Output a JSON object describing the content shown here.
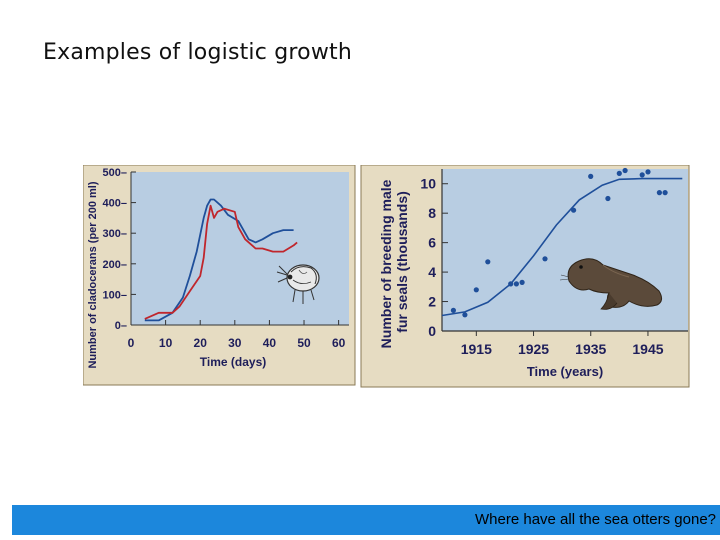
{
  "slide": {
    "title": "Examples of logistic growth",
    "footer_text": "Where have all the sea otters gone?"
  },
  "colors": {
    "panel_background": "#e6dcc2",
    "plot_background": "#b8cde2",
    "axis_text": "#1e1e5a",
    "series_blue": "#1f4f9a",
    "series_red": "#c0262c",
    "footer_bar": "#1c87dc"
  },
  "icons": [
    "cladoceran-illustration",
    "fur-seal-illustration"
  ],
  "chart_data": [
    {
      "type": "line",
      "title": "",
      "xlabel": "Time (days)",
      "ylabel": "Number of cladocerans (per 200 ml)",
      "xlim": [
        0,
        63
      ],
      "ylim": [
        0,
        500
      ],
      "xticks": [
        "0",
        "10",
        "20",
        "30",
        "40",
        "50",
        "60"
      ],
      "yticks": [
        "0",
        "100",
        "200",
        "300",
        "400",
        "500"
      ],
      "grid": false,
      "series": [
        {
          "color": "#1f4f9a",
          "x": [
            4,
            8,
            12,
            15,
            17,
            19,
            21,
            22,
            23,
            24,
            26,
            28,
            31,
            34,
            36,
            38,
            41,
            44,
            47
          ],
          "y": [
            15,
            15,
            40,
            90,
            160,
            240,
            350,
            390,
            410,
            410,
            390,
            360,
            340,
            280,
            270,
            280,
            300,
            310,
            310
          ]
        },
        {
          "color": "#c0262c",
          "x": [
            4,
            8,
            12,
            14,
            17,
            20,
            21,
            22,
            23,
            24,
            25,
            27,
            30,
            31,
            33,
            36,
            38,
            41,
            44,
            47,
            48
          ],
          "y": [
            20,
            40,
            40,
            60,
            110,
            160,
            220,
            330,
            390,
            350,
            370,
            380,
            370,
            320,
            280,
            250,
            250,
            240,
            240,
            260,
            270
          ]
        }
      ]
    },
    {
      "type": "scatter",
      "title": "",
      "xlabel": "Time (years)",
      "ylabel": "Number of breeding male fur seals (thousands)",
      "xlim": [
        1909,
        1952
      ],
      "ylim": [
        0,
        11
      ],
      "xticks": [
        "1915",
        "1925",
        "1935",
        "1945"
      ],
      "yticks": [
        "0",
        "2",
        "4",
        "6",
        "8",
        "10"
      ],
      "grid": false,
      "points": {
        "x": [
          1911,
          1913,
          1915,
          1917,
          1921,
          1922,
          1923,
          1927,
          1932,
          1935,
          1938,
          1940,
          1941,
          1944,
          1945,
          1947,
          1948
        ],
        "y": [
          1.4,
          1.1,
          2.8,
          4.7,
          3.2,
          3.2,
          3.3,
          4.9,
          8.2,
          10.5,
          9.0,
          10.7,
          10.9,
          10.6,
          10.8,
          9.4,
          9.4
        ]
      },
      "fit_curve": {
        "x": [
          1909,
          1913,
          1917,
          1921,
          1925,
          1929,
          1933,
          1937,
          1940,
          1944,
          1948,
          1951
        ],
        "y": [
          1.05,
          1.3,
          1.95,
          3.2,
          5.1,
          7.2,
          8.9,
          9.9,
          10.3,
          10.35,
          10.35,
          10.35
        ]
      }
    }
  ]
}
